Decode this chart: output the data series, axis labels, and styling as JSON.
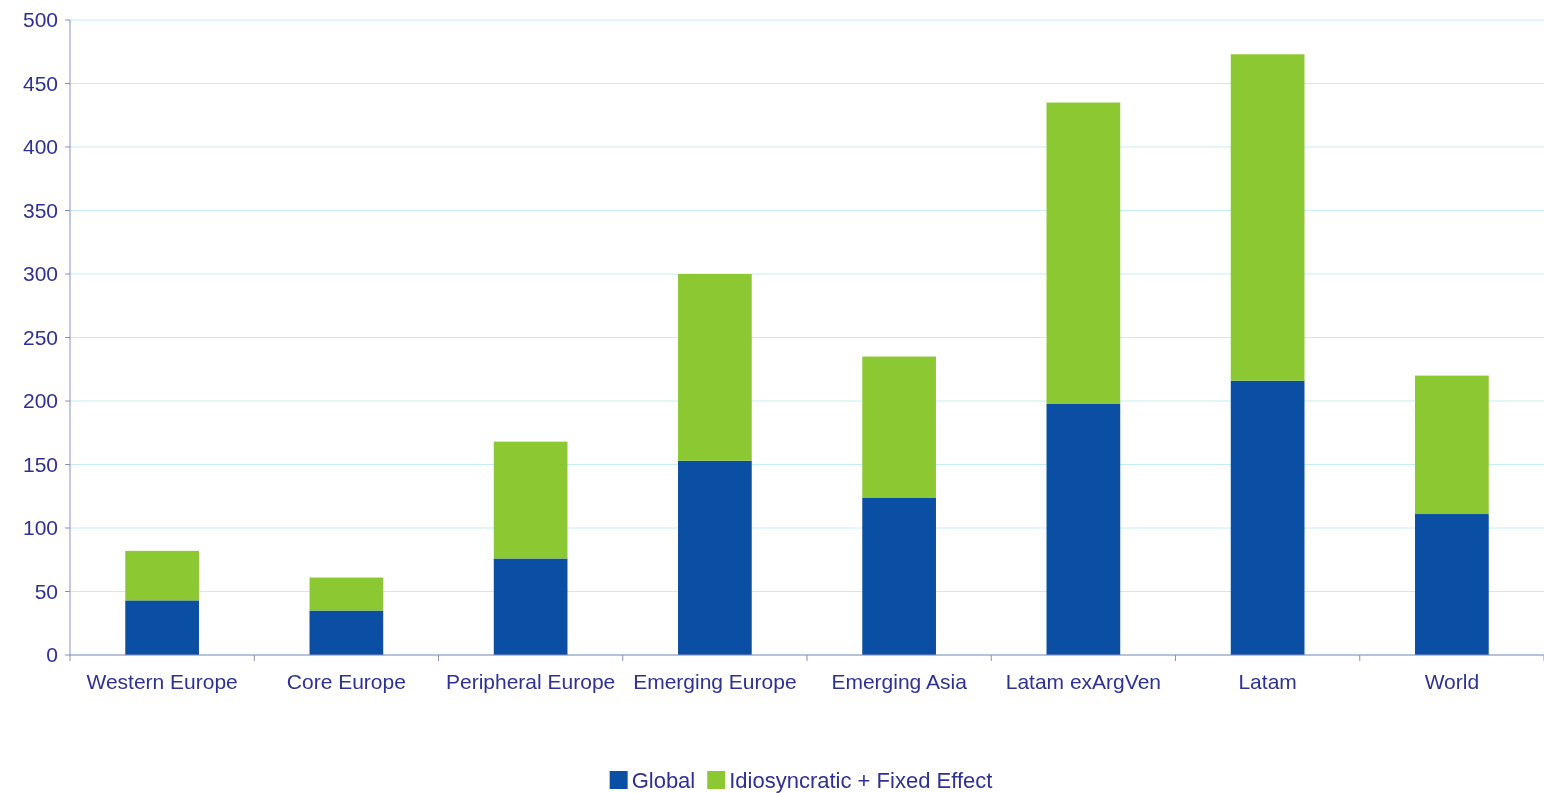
{
  "chart_data": {
    "type": "bar",
    "stacked": true,
    "categories": [
      "Western Europe",
      "Core Europe",
      "Peripheral Europe",
      "Emerging Europe",
      "Emerging Asia",
      "Latam exArgVen",
      "Latam",
      "World"
    ],
    "series": [
      {
        "name": "Global",
        "color": "#0a4fa3",
        "values": [
          43,
          35,
          76,
          153,
          124,
          198,
          216,
          111
        ]
      },
      {
        "name": "Idiosyncratic + Fixed Effect",
        "color": "#8cc832",
        "values": [
          39,
          26,
          92,
          147,
          111,
          237,
          257,
          109
        ]
      }
    ],
    "ylim": [
      0,
      500
    ],
    "yticks": [
      0,
      50,
      100,
      150,
      200,
      250,
      300,
      350,
      400,
      450,
      500
    ],
    "grid": "y",
    "legend": "bottom"
  }
}
